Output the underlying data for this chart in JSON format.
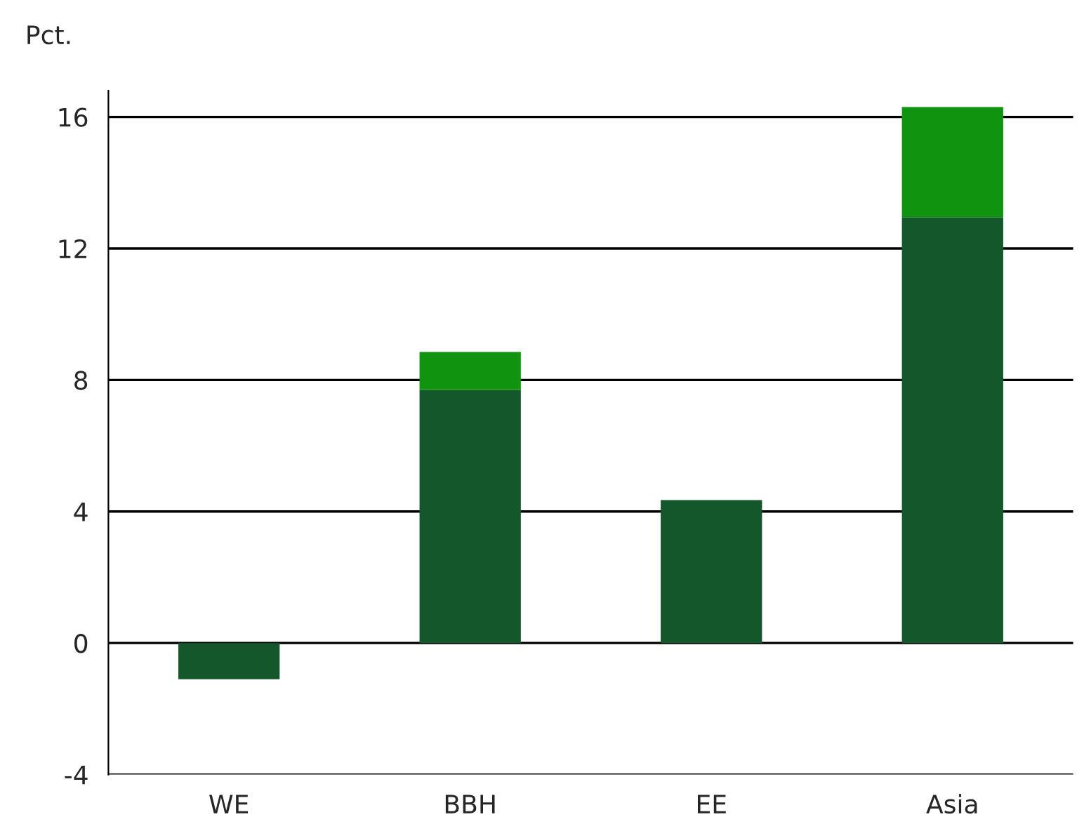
{
  "chart_data": {
    "type": "bar",
    "ylabel": "Pct.",
    "categories": [
      "WE",
      "BBH",
      "EE",
      "Asia"
    ],
    "stacked": true,
    "series": [
      {
        "color": "#14572a",
        "values": [
          -1.1,
          7.7,
          4.35,
          12.95
        ]
      },
      {
        "color": "#109410",
        "values": [
          null,
          1.15,
          null,
          3.35
        ]
      }
    ],
    "ylim": [
      -4,
      16.8
    ],
    "yticks": [
      -4,
      0,
      4,
      8,
      12,
      16
    ],
    "grid": "y",
    "legend": false
  }
}
